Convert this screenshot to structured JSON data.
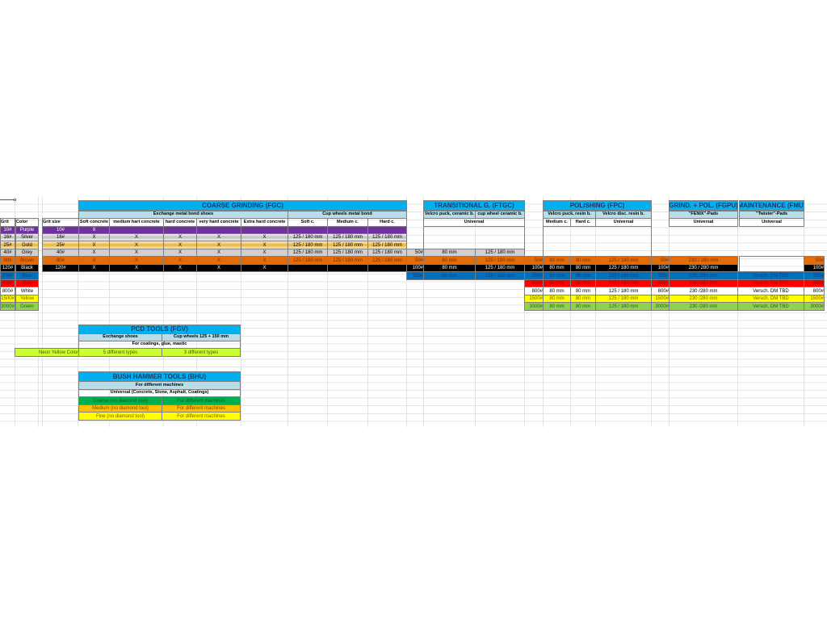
{
  "colors": {
    "title": "#00b0f0",
    "subheader": "#b7dee8",
    "neon": "#ccff33",
    "bhu_coarse": "#00b050",
    "bhu_medium": "#ffc000",
    "bhu_fine": "#ffff00"
  },
  "legend": {
    "headers": [
      "Grit",
      "Color"
    ],
    "rows": [
      {
        "grit": "10#",
        "color": "Purple",
        "bg": "#7030a0",
        "fg": "#ffffff"
      },
      {
        "grit": "16#",
        "color": "Silver",
        "bg": "#d9d9d9",
        "fg": "#000000"
      },
      {
        "grit": "25#",
        "color": "Gold",
        "bg": "#f4cf7a",
        "fg": "#000000"
      },
      {
        "grit": "40#",
        "color": "Grey",
        "bg": "#d0cece",
        "fg": "#000000"
      },
      {
        "grit": "80#",
        "color": "Brown",
        "bg": "#e26b0a",
        "fg": "#7a2e00"
      },
      {
        "grit": "120#",
        "color": "Black",
        "bg": "#000000",
        "fg": "#ffffff"
      },
      {
        "grit": "200#",
        "color": "Blue",
        "bg": "#0070c0",
        "fg": "#0b3c78"
      },
      {
        "grit": "400#",
        "color": "Red",
        "bg": "#ff0000",
        "fg": "#9c0006"
      },
      {
        "grit": "800#",
        "color": "White",
        "bg": "#ffffff",
        "fg": "#000000"
      },
      {
        "grit": "1500#",
        "color": "Yellow",
        "bg": "#ffff00",
        "fg": "#7f6000"
      },
      {
        "grit": "3000#",
        "color": "Green",
        "bg": "#92d050",
        "fg": "#375623"
      }
    ]
  },
  "coarse": {
    "title": "COARSE GRINDING (FGC)",
    "group1": "Exchange metal bond shoes",
    "group2": "Cup wheels metal bond",
    "headers": [
      "Grit size",
      "Soft concrete",
      "medium hart concrete",
      "hard concrete",
      "very hard concrete",
      "Extra hard concrete",
      "Soft c.",
      "Medium c.",
      "Hard c."
    ],
    "rows": [
      [
        "10#",
        "X",
        "",
        "",
        "",
        "",
        "",
        "",
        ""
      ],
      [
        "16#",
        "X",
        "X",
        "X",
        "X",
        "X",
        "125 / 180 mm",
        "125 / 180 mm",
        "125 / 180 mm"
      ],
      [
        "25#",
        "X",
        "X",
        "X",
        "X",
        "X",
        "125 / 180 mm",
        "125 / 180 mm",
        "125 / 180 mm"
      ],
      [
        "40#",
        "X",
        "X",
        "X",
        "X",
        "X",
        "125 / 180 mm",
        "125 / 180 mm",
        "125 / 180 mm"
      ],
      [
        "80#",
        "X",
        "X",
        "X",
        "X",
        "X",
        "125 / 180 mm",
        "125 / 180 mm",
        "125 / 180 mm"
      ],
      [
        "120#",
        "X",
        "X",
        "X",
        "X",
        "X",
        "",
        "",
        ""
      ]
    ]
  },
  "transitional": {
    "title": "TRANSITIONAL G. (FTGC)",
    "headers": [
      "Velcro puck, ceramic b.",
      "cup wheel ceramic b."
    ],
    "type": "Universal",
    "rows": [
      {
        "row": 3,
        "grit": "50#",
        "values": [
          "80 mm",
          "125 / 180 mm"
        ]
      },
      {
        "row": 4,
        "grit": "50#",
        "values": [
          "80 mm",
          "125 / 180 mm"
        ]
      },
      {
        "row": 5,
        "grit": "100#",
        "values": [
          "80 mm",
          "125 / 180 mm"
        ]
      },
      {
        "row": 6,
        "grit": "200#",
        "values": [
          "80 mm",
          "125 / 180 mm"
        ]
      }
    ]
  },
  "polishing": {
    "title": "POLISHING (FPC)",
    "group1": "Velcro puck, resin b.",
    "group2": "Velcro disc.  resin b.",
    "headers": [
      "Medium c.",
      "Hard c.",
      "Universal"
    ],
    "rows": [
      {
        "row": 4,
        "grit": "50#",
        "values": [
          "80 mm",
          "80 mm",
          "125 / 180 mm"
        ]
      },
      {
        "row": 5,
        "grit": "100#",
        "values": [
          "80 mm",
          "80 mm",
          "125 / 180 mm"
        ]
      },
      {
        "row": 6,
        "grit": "200#",
        "values": [
          "80 mm",
          "80 mm",
          "125 / 180 mm"
        ]
      },
      {
        "row": 7,
        "grit": "400#",
        "values": [
          "80 mm",
          "80 mm",
          "125 / 180 mm"
        ]
      },
      {
        "row": 8,
        "grit": "800#",
        "values": [
          "80 mm",
          "80 mm",
          "125 / 180 mm"
        ]
      },
      {
        "row": 9,
        "grit": "1500#",
        "values": [
          "80 mm",
          "80 mm",
          "125 / 180 mm"
        ]
      },
      {
        "row": 10,
        "grit": "3000#",
        "values": [
          "80 mm",
          "80 mm",
          "125 / 180 mm"
        ]
      }
    ]
  },
  "grind_pol": {
    "title": "GRIND. + POL. (FGPU)",
    "header": "\"FENIX\"-Pads",
    "type": "Universal",
    "rows": [
      {
        "row": 4,
        "grit": "50#",
        "value": "230 / 280 mm"
      },
      {
        "row": 5,
        "grit": "100#",
        "value": "230 / 280 mm"
      },
      {
        "row": 6,
        "grit": "200#",
        "value": "230 /280 mm"
      },
      {
        "row": 7,
        "grit": "400#",
        "value": "230 /280 mm"
      },
      {
        "row": 8,
        "grit": "800#",
        "value": "230 /280 mm"
      },
      {
        "row": 9,
        "grit": "1500#",
        "value": "230 /280 mm"
      },
      {
        "row": 10,
        "grit": "3000#",
        "value": "230 /280 mm"
      }
    ]
  },
  "maintenance": {
    "title": "MAINTENANCE (FMU)",
    "header": "\"Twister\"-Pads",
    "type": "Universal",
    "rows": [
      {
        "row": 6,
        "value": "Versch. DM TBD"
      },
      {
        "row": 7,
        "value": "Versch. DM TBD"
      },
      {
        "row": 8,
        "value": "Versch. DM TBD"
      },
      {
        "row": 9,
        "value": "Versch. DM TBD"
      },
      {
        "row": 10,
        "value": "Versch. DM TBD"
      }
    ],
    "grits": [
      {
        "row": 4,
        "grit": "50#"
      },
      {
        "row": 5,
        "grit": "100#"
      },
      {
        "row": 6,
        "grit": "200#"
      },
      {
        "row": 7,
        "grit": "400#"
      },
      {
        "row": 8,
        "grit": "800#"
      },
      {
        "row": 9,
        "grit": "1500#"
      },
      {
        "row": 10,
        "grit": "3000#"
      }
    ]
  },
  "pcd": {
    "title": "PCD TOOLS (FGV)",
    "headers": [
      "Exchange shoes",
      "Cup wheels 125 + 150 mm"
    ],
    "use": "For coatings, glue, mastic",
    "label": "Neon Yellow Color",
    "values": [
      "5 different types",
      "3 different types"
    ]
  },
  "bhu": {
    "title": "BUSH HAMMER TOOLS (BHU)",
    "subtitle": "For different machines",
    "use": "Universal (Concrete, Stone, Asphalt, Coatings)",
    "rows": [
      {
        "name": "Coarse (no diamond tool)",
        "value": "For different machines",
        "bg": "#00b050",
        "fg": "#0b5d1e"
      },
      {
        "name": "Medium (no diamond tool)",
        "value": "For different machines",
        "bg": "#ffc000",
        "fg": "#7f3f00"
      },
      {
        "name": "Fine (no diamond tool)",
        "value": "For different machines",
        "bg": "#ffff00",
        "fg": "#7f6000"
      }
    ]
  }
}
